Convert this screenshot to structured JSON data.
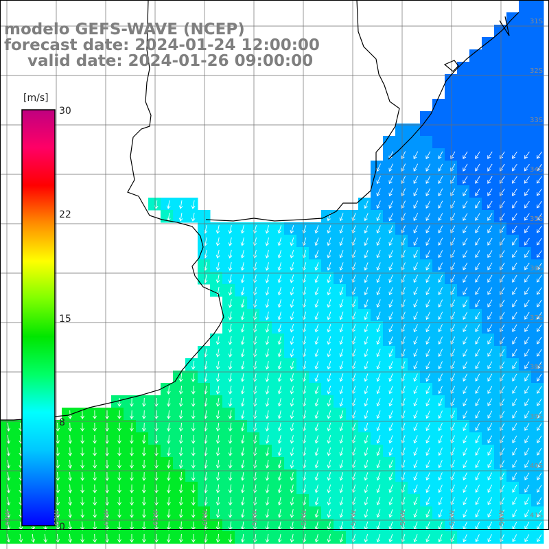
{
  "title": {
    "line1": "modelo GEFS-WAVE (NCEP)",
    "line2": "forecast date: 2024-01-24 12:00:00",
    "line3": "valid date: 2024-01-26 09:00:00"
  },
  "colorbar": {
    "unit": "[m/s]",
    "ticks": [
      "30",
      "22",
      "15",
      "8",
      "0"
    ],
    "colors": [
      "#0000ff",
      "#0066ff",
      "#00c8ff",
      "#00ffff",
      "#00ff66",
      "#00e600",
      "#7fff00",
      "#ffff00",
      "#ff8c00",
      "#ff0000",
      "#ff0066",
      "#c00080"
    ]
  },
  "lat_labels": [
    "31S",
    "32S",
    "33S",
    "34S",
    "35S",
    "36S",
    "37S",
    "38S",
    "39S",
    "40S",
    "41S"
  ],
  "lon_labels": [
    "64W",
    "63W",
    "62W",
    "61W",
    "60W",
    "59W",
    "58W",
    "57W",
    "56W",
    "55W",
    "54W"
  ],
  "colors": {
    "land": "#ffffff",
    "coast": "#000000",
    "grid": "#6e6e6e",
    "arrows": "#ffffff"
  }
}
